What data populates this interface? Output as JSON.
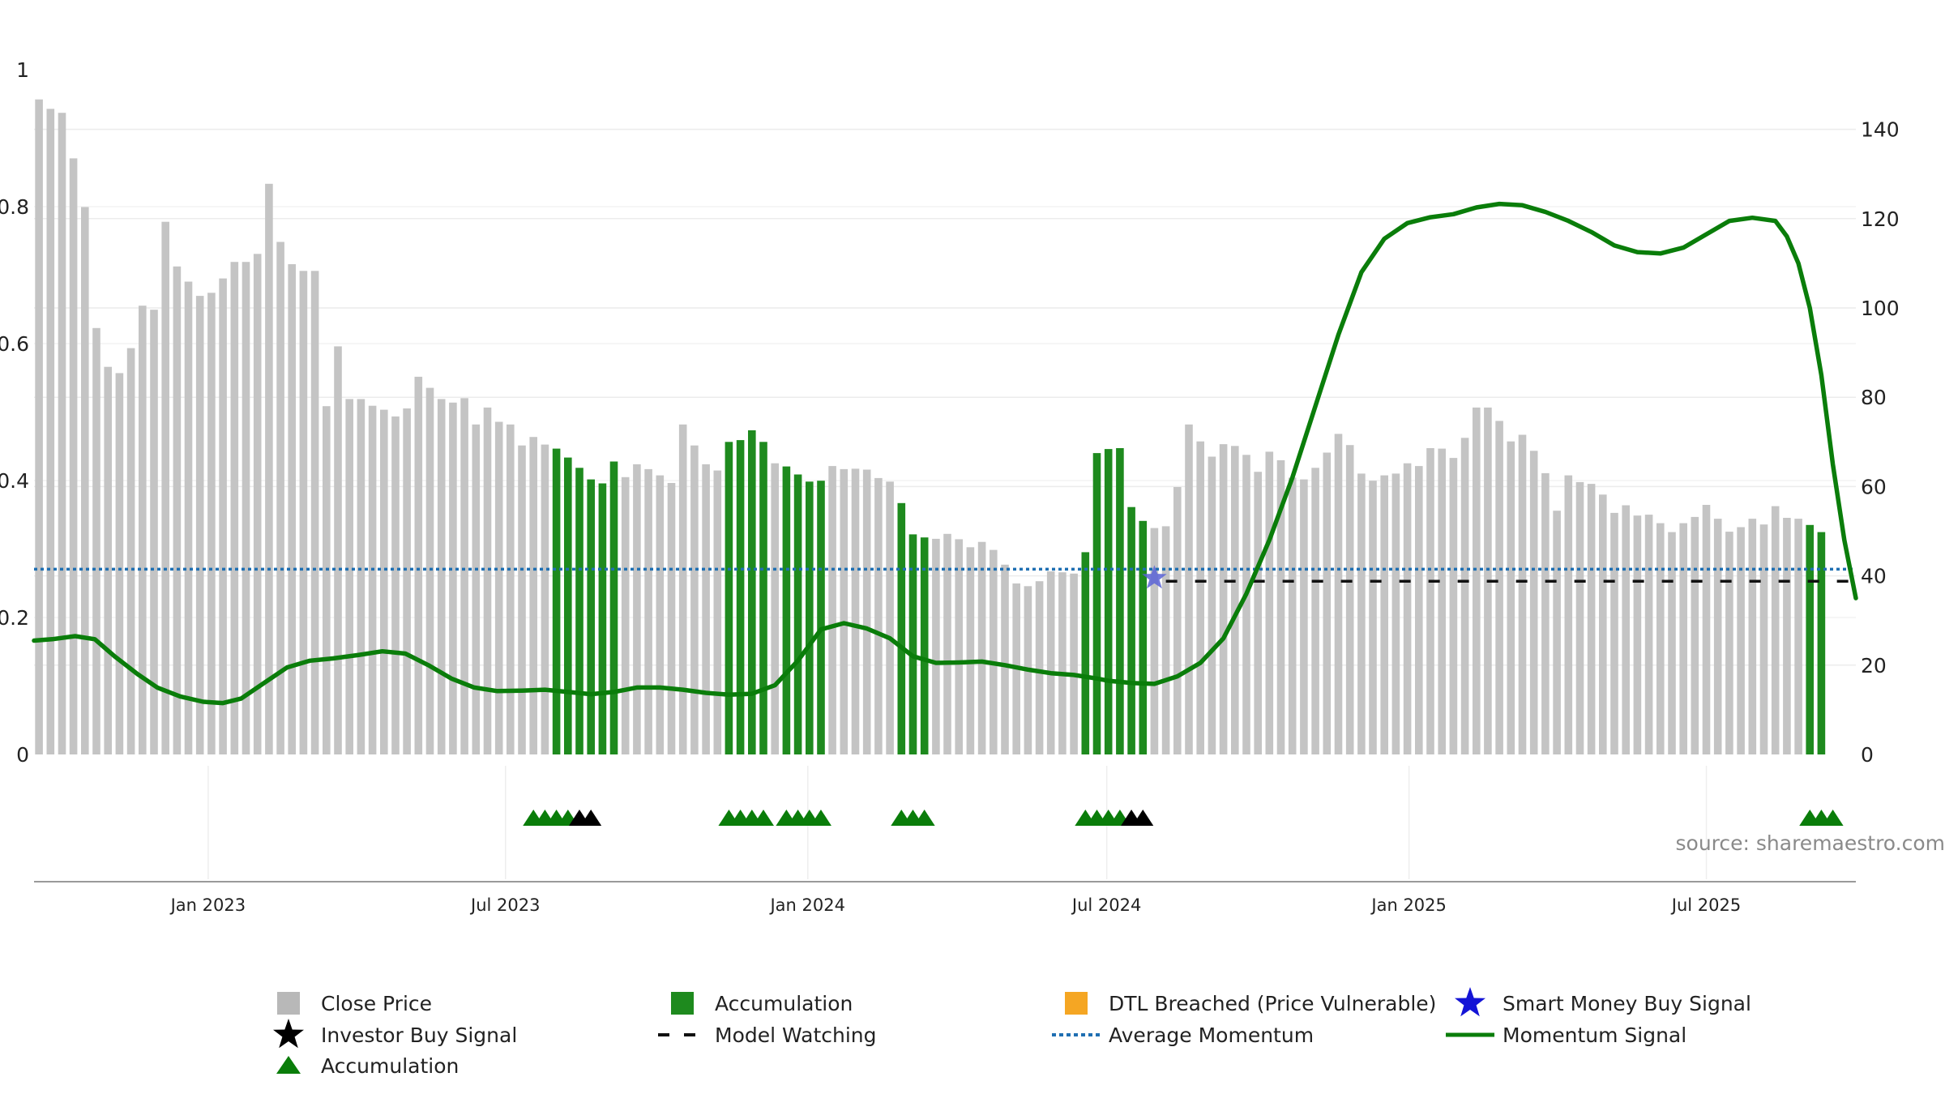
{
  "chart_data": {
    "type": "bar",
    "left_axis": {
      "range": [
        0,
        1
      ],
      "ticks": [
        "0",
        "0.2",
        "0.4",
        "0.6",
        "0.8",
        "1"
      ],
      "tick_values": [
        0,
        0.2,
        0.4,
        0.6,
        0.8,
        1
      ]
    },
    "right_axis": {
      "range": [
        0,
        150
      ],
      "ticks": [
        "0",
        "20",
        "40",
        "60",
        "80",
        "100",
        "120",
        "140"
      ],
      "tick_values": [
        0,
        20,
        40,
        60,
        80,
        100,
        120,
        140
      ]
    },
    "x_axis": {
      "range": [
        "2022-09-17",
        "2025-09-30"
      ],
      "tick_labels": [
        "Jan 2023",
        "Jul 2023",
        "Jan 2024",
        "Jul 2024",
        "Jan 2025",
        "Jul 2025"
      ],
      "tick_dates": [
        "2023-01-01",
        "2023-07-01",
        "2024-01-01",
        "2024-07-01",
        "2025-01-01",
        "2025-07-01"
      ]
    },
    "grid": "horizontal",
    "legend_placement": "bottom",
    "series": [
      {
        "name": "Close Price",
        "type": "bar",
        "color": "#c4c4c4",
        "start_date": "2022-09-20",
        "interval_days": 7,
        "values": [
          146.7,
          144.6,
          143.7,
          133.5,
          122.6,
          95.5,
          86.8,
          85.4,
          91,
          100.5,
          99.6,
          119.3,
          109.3,
          105.9,
          102.7,
          103.4,
          106.6,
          110.3,
          110.3,
          112.1,
          127.8,
          114.8,
          109.8,
          108.3,
          108.3,
          78,
          91.4,
          79.6,
          79.6,
          78.1,
          77.2,
          75.7,
          77.5,
          84.6,
          82.1,
          79.6,
          78.8,
          79.8,
          73.9,
          77.7,
          74.5,
          73.9,
          69.2,
          71.1,
          69.4,
          68.5,
          66.5,
          64.2,
          61.6,
          60.7,
          65.6,
          62.1,
          65,
          63.9,
          62.5,
          60.8,
          73.9,
          69.2,
          65,
          63.6,
          70,
          70.4,
          72.6,
          70,
          65.2,
          64.5,
          62.7,
          61.1,
          61.3,
          64.6,
          63.9,
          64,
          63.8,
          61.9,
          61.1,
          56.3,
          49.3,
          48.6,
          48.3,
          49.4,
          48.2,
          46.4,
          47.6,
          45.8,
          42.5,
          38.3,
          37.7,
          38.8,
          41,
          40.8,
          40.5,
          45.3,
          67.5,
          68.4,
          68.6,
          55.4,
          52.3,
          50.7,
          51.1,
          59.9,
          73.9,
          70.1,
          66.7,
          69.5,
          69.1,
          67.1,
          63.3,
          67.8,
          65.9,
          62,
          61.6,
          64.2,
          67.6,
          71.8,
          69.3,
          62.9,
          61.3,
          62.5,
          62.9,
          65.2,
          64.6,
          68.6,
          68.5,
          66.4,
          70.9,
          77.7,
          77.7,
          74.7,
          70.1,
          71.6,
          68,
          63,
          54.6,
          62.5,
          61,
          60.6,
          58.2,
          54.1,
          55.8,
          53.5,
          53.7,
          51.8,
          49.8,
          51.8,
          53.2,
          55.9,
          52.8,
          49.9,
          50.9,
          52.8,
          51.5,
          55.6,
          53,
          52.8,
          51.4,
          49.8
        ]
      },
      {
        "name": "Accumulation",
        "type": "bar",
        "color": "#1e8a1e",
        "highlight_dates": [
          "2023-08-01",
          "2023-08-08",
          "2023-08-15",
          "2023-08-22",
          "2023-08-29",
          "2023-09-05",
          "2023-11-14",
          "2023-11-21",
          "2023-11-28",
          "2023-12-05",
          "2023-12-19",
          "2023-12-26",
          "2024-01-02",
          "2024-01-09",
          "2024-02-27",
          "2024-03-05",
          "2024-03-12",
          "2024-06-18",
          "2024-06-25",
          "2024-07-02",
          "2024-07-09",
          "2024-07-16",
          "2024-07-23",
          "2025-09-02",
          "2025-09-09",
          "2025-09-16"
        ]
      },
      {
        "name": "Momentum Signal",
        "type": "line",
        "color": "#0a7d0a",
        "points": [
          [
            "2022-09-17",
            25.5
          ],
          [
            "2022-09-28",
            25.8
          ],
          [
            "2022-10-12",
            26.5
          ],
          [
            "2022-10-24",
            25.8
          ],
          [
            "2022-11-05",
            22
          ],
          [
            "2022-11-19",
            18
          ],
          [
            "2022-12-01",
            15
          ],
          [
            "2022-12-15",
            13
          ],
          [
            "2022-12-29",
            11.8
          ],
          [
            "2023-01-10",
            11.5
          ],
          [
            "2023-01-21",
            12.5
          ],
          [
            "2023-02-04",
            16
          ],
          [
            "2023-02-18",
            19.5
          ],
          [
            "2023-03-04",
            21
          ],
          [
            "2023-03-18",
            21.5
          ],
          [
            "2023-04-03",
            22.3
          ],
          [
            "2023-04-17",
            23.1
          ],
          [
            "2023-05-01",
            22.6
          ],
          [
            "2023-05-15",
            20
          ],
          [
            "2023-05-29",
            17
          ],
          [
            "2023-06-12",
            15
          ],
          [
            "2023-06-26",
            14.2
          ],
          [
            "2023-07-11",
            14.3
          ],
          [
            "2023-07-25",
            14.5
          ],
          [
            "2023-08-08",
            14
          ],
          [
            "2023-08-22",
            13.5
          ],
          [
            "2023-09-05",
            14
          ],
          [
            "2023-09-19",
            15
          ],
          [
            "2023-10-03",
            15
          ],
          [
            "2023-10-17",
            14.5
          ],
          [
            "2023-10-31",
            13.8
          ],
          [
            "2023-11-14",
            13.4
          ],
          [
            "2023-11-28",
            13.6
          ],
          [
            "2023-12-12",
            15.5
          ],
          [
            "2023-12-26",
            21
          ],
          [
            "2024-01-09",
            28
          ],
          [
            "2024-01-23",
            29.4
          ],
          [
            "2024-02-06",
            28.2
          ],
          [
            "2024-02-20",
            26
          ],
          [
            "2024-03-05",
            22
          ],
          [
            "2024-03-19",
            20.5
          ],
          [
            "2024-04-02",
            20.6
          ],
          [
            "2024-04-16",
            20.8
          ],
          [
            "2024-04-30",
            20
          ],
          [
            "2024-05-14",
            19
          ],
          [
            "2024-05-28",
            18.2
          ],
          [
            "2024-06-11",
            17.8
          ],
          [
            "2024-06-25",
            17
          ],
          [
            "2024-07-02",
            16.5
          ],
          [
            "2024-07-16",
            16
          ],
          [
            "2024-07-30",
            15.8
          ],
          [
            "2024-08-13",
            17.5
          ],
          [
            "2024-08-27",
            20.5
          ],
          [
            "2024-09-10",
            26
          ],
          [
            "2024-09-24",
            36
          ],
          [
            "2024-10-08",
            48
          ],
          [
            "2024-10-22",
            62
          ],
          [
            "2024-11-05",
            78
          ],
          [
            "2024-11-19",
            94
          ],
          [
            "2024-12-03",
            108
          ],
          [
            "2024-12-17",
            115.5
          ],
          [
            "2024-12-31",
            119
          ],
          [
            "2025-01-14",
            120.3
          ],
          [
            "2025-01-28",
            121
          ],
          [
            "2025-02-11",
            122.5
          ],
          [
            "2025-02-25",
            123.3
          ],
          [
            "2025-03-11",
            123
          ],
          [
            "2025-03-25",
            121.5
          ],
          [
            "2025-04-08",
            119.5
          ],
          [
            "2025-04-22",
            117
          ],
          [
            "2025-05-06",
            114
          ],
          [
            "2025-05-20",
            112.5
          ],
          [
            "2025-06-03",
            112.2
          ],
          [
            "2025-06-17",
            113.5
          ],
          [
            "2025-07-01",
            116.5
          ],
          [
            "2025-07-15",
            119.5
          ],
          [
            "2025-07-29",
            120.2
          ],
          [
            "2025-08-12",
            119.5
          ],
          [
            "2025-08-19",
            116
          ],
          [
            "2025-08-26",
            110
          ],
          [
            "2025-09-02",
            100
          ],
          [
            "2025-09-09",
            85
          ],
          [
            "2025-09-16",
            65
          ],
          [
            "2025-09-23",
            48
          ],
          [
            "2025-09-30",
            35
          ]
        ]
      },
      {
        "name": "Average Momentum",
        "type": "hline",
        "color": "#1f6fb2",
        "value": 41.5
      },
      {
        "name": "Model Watching",
        "type": "hline",
        "color": "#111111",
        "value": 38.8,
        "from": "2024-08-06"
      },
      {
        "name": "Smart Money Buy Signal",
        "type": "marker",
        "color": "#5a63d6",
        "points": [
          [
            "2024-07-30",
            39.5
          ]
        ]
      },
      {
        "name": "Accumulation",
        "type": "marker",
        "marker": "triangle",
        "color": "#0a7d0a",
        "dates": [
          "2023-07-18",
          "2023-07-25",
          "2023-08-01",
          "2023-08-08",
          "2023-11-14",
          "2023-11-21",
          "2023-11-28",
          "2023-12-05",
          "2023-12-19",
          "2023-12-26",
          "2024-01-02",
          "2024-01-09",
          "2024-02-27",
          "2024-03-05",
          "2024-03-12",
          "2024-06-18",
          "2024-06-25",
          "2024-07-02",
          "2024-07-09",
          "2025-09-02",
          "2025-09-09",
          "2025-09-16"
        ]
      },
      {
        "name": "Investor Buy Signal",
        "type": "marker",
        "marker": "triangle",
        "color": "#000000",
        "dates": [
          "2023-08-15",
          "2023-08-22",
          "2024-07-16",
          "2024-07-23"
        ]
      }
    ],
    "annotations": [
      {
        "text": "source: sharemaestro.com"
      }
    ],
    "legend": [
      {
        "label": "Close Price",
        "symbol": "square",
        "color": "#b8b8b8"
      },
      {
        "label": "Accumulation",
        "symbol": "square",
        "color": "#1e8a1e"
      },
      {
        "label": "DTL Breached (Price Vulnerable)",
        "symbol": "square",
        "color": "#f5a623"
      },
      {
        "label": "Smart Money Buy Signal",
        "symbol": "star",
        "color": "#1414d6"
      },
      {
        "label": "Investor Buy Signal",
        "symbol": "star",
        "color": "#000000"
      },
      {
        "label": "Model Watching",
        "symbol": "dash",
        "color": "#111111"
      },
      {
        "label": "Average Momentum",
        "symbol": "dot",
        "color": "#1f6fb2"
      },
      {
        "label": "Momentum Signal",
        "symbol": "line",
        "color": "#0a7d0a"
      },
      {
        "label": "Accumulation",
        "symbol": "triangle",
        "color": "#0a7d0a"
      }
    ]
  }
}
